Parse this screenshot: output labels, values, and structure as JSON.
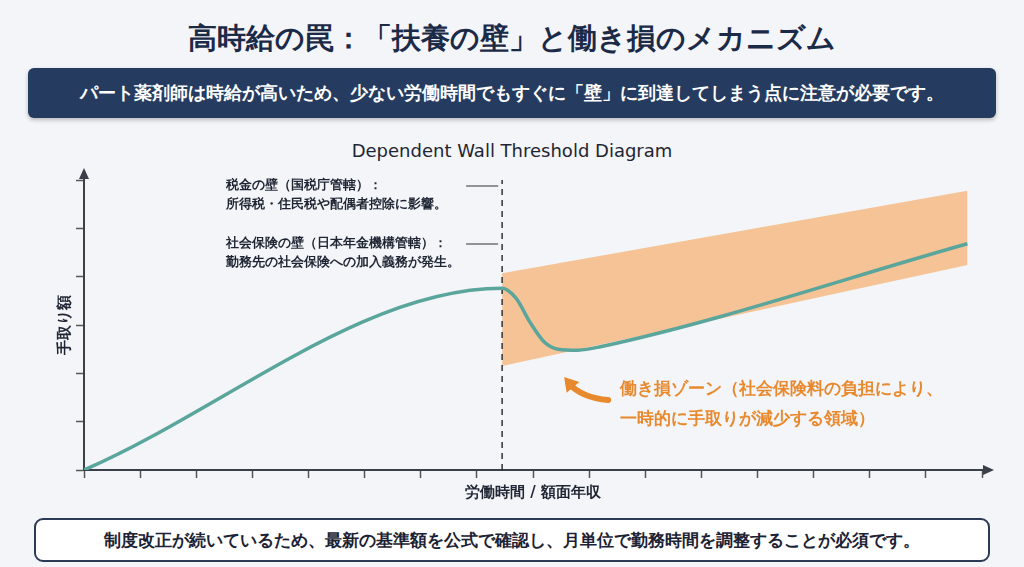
{
  "header": {
    "title": "高時給の罠：「扶養の壁」と働き損のメカニズム",
    "subtitle": "パート薬剤師は時給が高いため、少ない労働時間でもすぐに「壁」に到達してしまう点に注意が必要です。"
  },
  "chart_data": {
    "type": "line",
    "title": "Dependent Wall Threshold Diagram",
    "x_label": "労働時間 / 額面年収",
    "y_label": "手取り額",
    "xlim": [
      0,
      16
    ],
    "ylim": [
      0,
      6
    ],
    "xticks": [
      0,
      1,
      2,
      3,
      4,
      5,
      6,
      7,
      8,
      9,
      10,
      11,
      12,
      13,
      14,
      15,
      16
    ],
    "yticks": [
      0,
      1,
      2,
      3,
      4,
      5,
      6
    ],
    "grid": false,
    "tick_labels": false,
    "series": [
      {
        "type": "line",
        "color": "#5aa59c",
        "x": [
          0,
          7.45,
          7.7,
          7.95,
          8.2,
          8.45,
          8.8,
          9.2,
          15.74
        ],
        "values": [
          0,
          3.76,
          3.55,
          3.05,
          2.65,
          2.5,
          2.48,
          2.55,
          4.68
        ]
      },
      {
        "type": "band",
        "color": "#f5b67c",
        "x": [
          7.45,
          15.74
        ],
        "low": [
          2.15,
          4.24
        ],
        "high": [
          4.07,
          5.78
        ]
      }
    ],
    "vline": {
      "x": 7.45,
      "line_style": "dashed",
      "color": "#333333"
    },
    "wall_notes": [
      {
        "lines": [
          "税金の壁（国税庁管轄）：",
          "所得税・住民税や配偶者控除に影響。"
        ]
      },
      {
        "lines": [
          "社会保険の壁（日本年金機構管轄）：",
          "勤務先の社会保険への加入義務が発生。"
        ]
      }
    ],
    "zone_note": {
      "lines": [
        "働き損ゾーン（社会保険料の負担により、",
        "一時的に手取りが減少する領域）"
      ],
      "color": "#e8892e"
    }
  },
  "footer": "制度改正が続いているため、最新の基準額を公式で確認し、月単位で勤務時間を調整することが必須です。"
}
